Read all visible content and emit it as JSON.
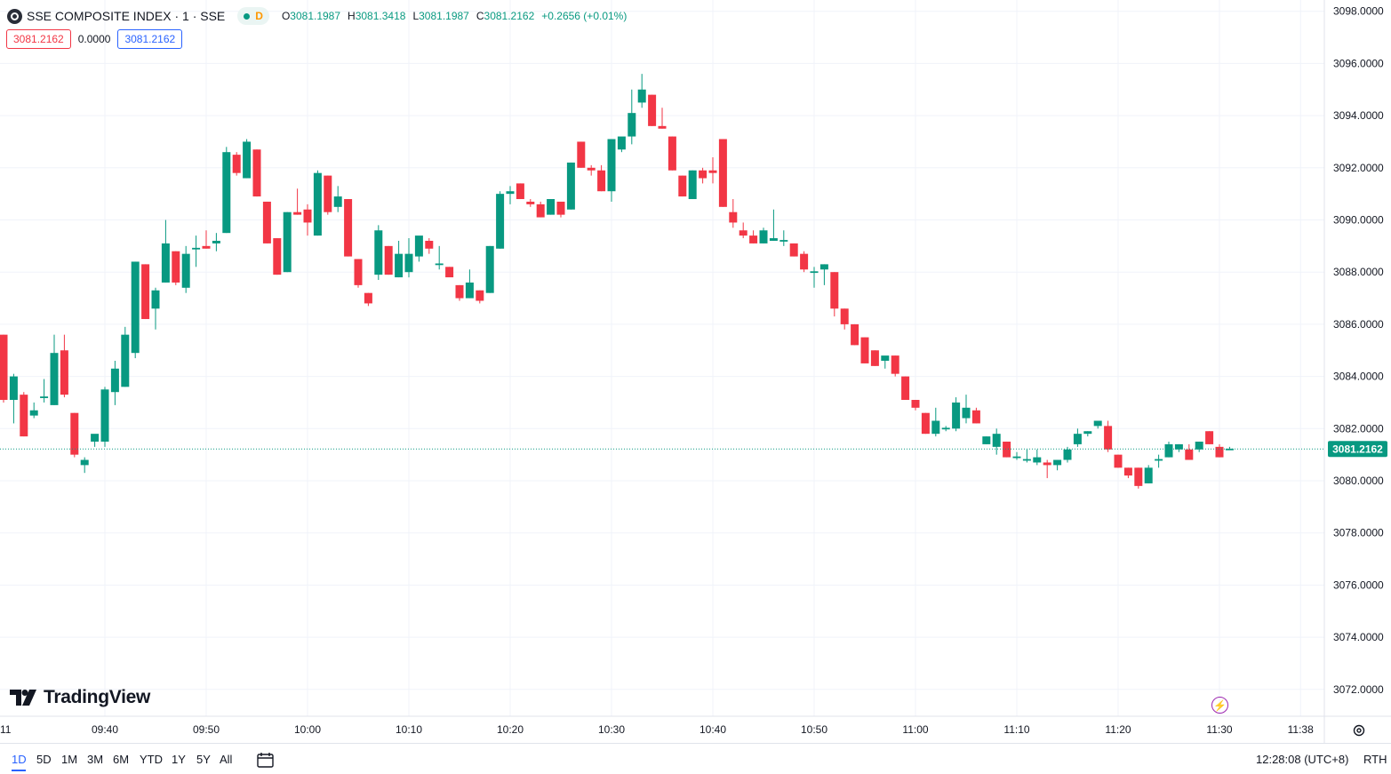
{
  "header": {
    "symbol_title": "SSE COMPOSITE INDEX · 1 · SSE",
    "status_badge": "D",
    "ohlc": {
      "o_label": "O",
      "o_value": "3081.1987",
      "h_label": "H",
      "h_value": "3081.3418",
      "l_label": "L",
      "l_value": "3081.1987",
      "c_label": "C",
      "c_value": "3081.2162",
      "change": "+0.2656 (+0.01%)"
    },
    "values": {
      "bid": "3081.2162",
      "spread": "0.0000",
      "ask": "3081.2162"
    }
  },
  "logo": {
    "text": "TradingView",
    "icon": "tradingview-logo-icon"
  },
  "bottom_bar": {
    "ranges": [
      "1D",
      "5D",
      "1M",
      "3M",
      "6M",
      "YTD",
      "1Y",
      "5Y",
      "All"
    ],
    "active_range": "1D",
    "clock": "12:28:08 (UTC+8)",
    "session": "RTH"
  },
  "icons": {
    "lightning": "lightning-icon",
    "settings": "gear-icon",
    "calendar": "calendar-range-icon",
    "symbol": "symbol-logo-icon"
  },
  "colors": {
    "up": "#089981",
    "down": "#f23645",
    "grid": "#f0f3fa",
    "axis_text": "#131722",
    "price_line": "#089981",
    "active": "#2962ff"
  },
  "chart_data": {
    "type": "candlestick",
    "title": "",
    "xlabel": "",
    "ylabel": "",
    "ylim": [
      3071.5,
      3098.2
    ],
    "y_ticks": [
      "3072.0000",
      "3074.0000",
      "3076.0000",
      "3078.0000",
      "3080.0000",
      "3082.0000",
      "3084.0000",
      "3086.0000",
      "3088.0000",
      "3090.0000",
      "3092.0000",
      "3094.0000",
      "3096.0000",
      "3098.0000"
    ],
    "x_ticks": [
      "11",
      "09:40",
      "09:50",
      "10:00",
      "10:10",
      "10:20",
      "10:30",
      "10:40",
      "10:50",
      "11:00",
      "11:10",
      "11:20",
      "11:30",
      "11:38"
    ],
    "x_tick_minutes": [
      571,
      580,
      590,
      600,
      610,
      620,
      630,
      640,
      650,
      660,
      670,
      680,
      690,
      698
    ],
    "current_price": "3081.2162",
    "current_price_value": 3081.2162,
    "start_time": "09:30",
    "candles": [
      [
        3085.6,
        3085.6,
        3083.0,
        3083.1
      ],
      [
        3083.1,
        3084.1,
        3082.2,
        3084.0
      ],
      [
        3083.3,
        3083.4,
        3081.7,
        3081.7
      ],
      [
        3082.5,
        3083.0,
        3082.4,
        3082.7
      ],
      [
        3083.2,
        3083.9,
        3083.0,
        3083.2
      ],
      [
        3082.9,
        3085.6,
        3082.9,
        3084.9
      ],
      [
        3085.0,
        3085.6,
        3083.2,
        3083.3
      ],
      [
        3082.6,
        3082.6,
        3080.9,
        3081.0
      ],
      [
        3080.6,
        3080.9,
        3080.3,
        3080.8
      ],
      [
        3081.5,
        3081.6,
        3081.3,
        3081.8
      ],
      [
        3081.5,
        3083.6,
        3081.3,
        3083.5
      ],
      [
        3083.4,
        3084.6,
        3082.9,
        3084.3
      ],
      [
        3083.6,
        3085.9,
        3083.6,
        3085.6
      ],
      [
        3084.9,
        3088.4,
        3084.7,
        3088.4
      ],
      [
        3088.3,
        3088.3,
        3086.2,
        3086.2
      ],
      [
        3086.6,
        3087.4,
        3085.8,
        3087.3
      ],
      [
        3087.6,
        3090.0,
        3087.6,
        3089.1
      ],
      [
        3088.8,
        3088.8,
        3087.5,
        3087.6
      ],
      [
        3087.4,
        3089.0,
        3087.2,
        3088.7
      ],
      [
        3088.9,
        3089.4,
        3088.2,
        3088.9
      ],
      [
        3089.0,
        3089.6,
        3088.9,
        3088.9
      ],
      [
        3089.1,
        3089.5,
        3088.8,
        3089.2
      ],
      [
        3089.5,
        3092.8,
        3089.5,
        3092.6
      ],
      [
        3092.5,
        3092.6,
        3091.7,
        3091.8
      ],
      [
        3091.6,
        3093.1,
        3091.6,
        3093.0
      ],
      [
        3092.7,
        3092.7,
        3090.9,
        3090.9
      ],
      [
        3090.7,
        3090.7,
        3089.1,
        3089.1
      ],
      [
        3089.3,
        3089.3,
        3087.9,
        3087.9
      ],
      [
        3088.0,
        3090.3,
        3088.0,
        3090.3
      ],
      [
        3090.3,
        3091.2,
        3090.2,
        3090.2
      ],
      [
        3090.4,
        3090.6,
        3089.4,
        3089.9
      ],
      [
        3089.4,
        3091.9,
        3089.4,
        3091.8
      ],
      [
        3091.7,
        3091.7,
        3090.2,
        3090.3
      ],
      [
        3090.5,
        3091.3,
        3090.3,
        3090.9
      ],
      [
        3090.8,
        3090.8,
        3088.6,
        3088.6
      ],
      [
        3088.5,
        3088.5,
        3087.4,
        3087.5
      ],
      [
        3087.2,
        3087.2,
        3086.7,
        3086.8
      ],
      [
        3087.9,
        3089.8,
        3087.7,
        3089.6
      ],
      [
        3089.0,
        3089.0,
        3087.9,
        3087.9
      ],
      [
        3087.8,
        3089.2,
        3087.8,
        3088.7
      ],
      [
        3088.0,
        3089.3,
        3087.8,
        3088.7
      ],
      [
        3088.6,
        3089.3,
        3088.4,
        3089.4
      ],
      [
        3089.2,
        3089.3,
        3088.7,
        3088.9
      ],
      [
        3088.3,
        3089.0,
        3088.1,
        3088.3
      ],
      [
        3088.2,
        3088.2,
        3087.9,
        3087.8
      ],
      [
        3087.5,
        3087.5,
        3086.9,
        3087.0
      ],
      [
        3087.0,
        3088.1,
        3087.0,
        3087.6
      ],
      [
        3087.3,
        3087.3,
        3086.8,
        3086.9
      ],
      [
        3087.2,
        3089.0,
        3087.2,
        3089.0
      ],
      [
        3088.9,
        3091.1,
        3088.9,
        3091.0
      ],
      [
        3091.0,
        3091.3,
        3090.6,
        3091.1
      ],
      [
        3091.4,
        3091.4,
        3090.8,
        3090.8
      ],
      [
        3090.7,
        3090.8,
        3090.5,
        3090.6
      ],
      [
        3090.6,
        3090.7,
        3090.1,
        3090.1
      ],
      [
        3090.2,
        3090.8,
        3090.2,
        3090.8
      ],
      [
        3090.7,
        3090.7,
        3090.1,
        3090.2
      ],
      [
        3090.4,
        3092.2,
        3090.4,
        3092.2
      ],
      [
        3093.0,
        3093.0,
        3092.0,
        3092.0
      ],
      [
        3092.0,
        3092.1,
        3091.7,
        3091.9
      ],
      [
        3091.9,
        3092.1,
        3091.1,
        3091.1
      ],
      [
        3091.1,
        3093.1,
        3090.7,
        3093.1
      ],
      [
        3092.7,
        3093.0,
        3092.6,
        3093.2
      ],
      [
        3093.2,
        3095.0,
        3092.9,
        3094.1
      ],
      [
        3094.5,
        3095.6,
        3094.3,
        3095.0
      ],
      [
        3094.8,
        3094.8,
        3093.6,
        3093.6
      ],
      [
        3093.6,
        3094.3,
        3093.5,
        3093.5
      ],
      [
        3093.2,
        3093.2,
        3091.9,
        3091.9
      ],
      [
        3091.7,
        3091.7,
        3090.9,
        3090.9
      ],
      [
        3090.8,
        3091.9,
        3090.8,
        3091.9
      ],
      [
        3091.9,
        3092.0,
        3091.4,
        3091.6
      ],
      [
        3091.9,
        3092.4,
        3091.4,
        3091.8
      ],
      [
        3093.1,
        3093.1,
        3090.5,
        3090.5
      ],
      [
        3090.3,
        3090.8,
        3089.7,
        3089.9
      ],
      [
        3089.6,
        3089.9,
        3089.3,
        3089.4
      ],
      [
        3089.4,
        3089.6,
        3089.1,
        3089.1
      ],
      [
        3089.1,
        3089.7,
        3089.1,
        3089.6
      ],
      [
        3089.2,
        3090.4,
        3089.2,
        3089.3
      ],
      [
        3089.2,
        3089.6,
        3089.0,
        3089.2
      ],
      [
        3089.1,
        3089.1,
        3088.6,
        3088.6
      ],
      [
        3088.7,
        3088.8,
        3088.0,
        3088.1
      ],
      [
        3088.0,
        3088.2,
        3087.4,
        3088.0
      ],
      [
        3088.1,
        3088.3,
        3087.5,
        3088.3
      ],
      [
        3088.0,
        3088.0,
        3086.3,
        3086.6
      ],
      [
        3086.6,
        3086.6,
        3085.8,
        3086.0
      ],
      [
        3086.0,
        3086.0,
        3085.2,
        3085.2
      ],
      [
        3085.5,
        3085.5,
        3084.5,
        3084.5
      ],
      [
        3085.0,
        3085.0,
        3084.4,
        3084.4
      ],
      [
        3084.6,
        3084.7,
        3084.3,
        3084.8
      ],
      [
        3084.8,
        3084.8,
        3084.0,
        3084.1
      ],
      [
        3084.0,
        3084.0,
        3083.1,
        3083.1
      ],
      [
        3083.1,
        3083.1,
        3082.7,
        3082.8
      ],
      [
        3082.6,
        3082.6,
        3081.8,
        3081.8
      ],
      [
        3081.8,
        3082.8,
        3081.7,
        3082.3
      ],
      [
        3082.0,
        3082.1,
        3081.9,
        3082.0
      ],
      [
        3082.0,
        3083.2,
        3081.9,
        3083.0
      ],
      [
        3082.4,
        3083.3,
        3082.2,
        3082.8
      ],
      [
        3082.7,
        3082.8,
        3082.2,
        3082.2
      ],
      [
        3081.4,
        3081.7,
        3081.4,
        3081.7
      ],
      [
        3081.3,
        3082.0,
        3081.0,
        3081.8
      ],
      [
        3081.5,
        3081.5,
        3080.9,
        3080.9
      ],
      [
        3080.9,
        3081.1,
        3080.8,
        3080.9
      ],
      [
        3080.8,
        3081.2,
        3080.7,
        3080.8
      ],
      [
        3080.7,
        3081.2,
        3080.6,
        3080.9
      ],
      [
        3080.7,
        3080.8,
        3080.1,
        3080.6
      ],
      [
        3080.6,
        3080.8,
        3080.4,
        3080.8
      ],
      [
        3080.8,
        3081.3,
        3080.7,
        3081.2
      ],
      [
        3081.4,
        3082.0,
        3081.3,
        3081.8
      ],
      [
        3081.8,
        3081.9,
        3081.7,
        3081.9
      ],
      [
        3082.1,
        3082.3,
        3082.0,
        3082.3
      ],
      [
        3082.1,
        3082.3,
        3081.1,
        3081.2
      ],
      [
        3081.0,
        3081.0,
        3080.5,
        3080.5
      ],
      [
        3080.5,
        3080.5,
        3080.1,
        3080.2
      ],
      [
        3080.5,
        3080.5,
        3079.7,
        3079.8
      ],
      [
        3079.9,
        3080.6,
        3079.9,
        3080.5
      ],
      [
        3080.8,
        3081.0,
        3080.5,
        3080.8
      ],
      [
        3080.9,
        3081.5,
        3080.9,
        3081.4
      ],
      [
        3081.2,
        3081.4,
        3081.1,
        3081.4
      ],
      [
        3081.2,
        3081.4,
        3080.8,
        3080.8
      ],
      [
        3081.2,
        3081.5,
        3081.1,
        3081.5
      ],
      [
        3081.9,
        3081.9,
        3081.4,
        3081.4
      ],
      [
        3081.3,
        3081.4,
        3080.9,
        3080.9
      ],
      [
        3081.2,
        3081.3,
        3081.2,
        3081.2
      ]
    ]
  }
}
